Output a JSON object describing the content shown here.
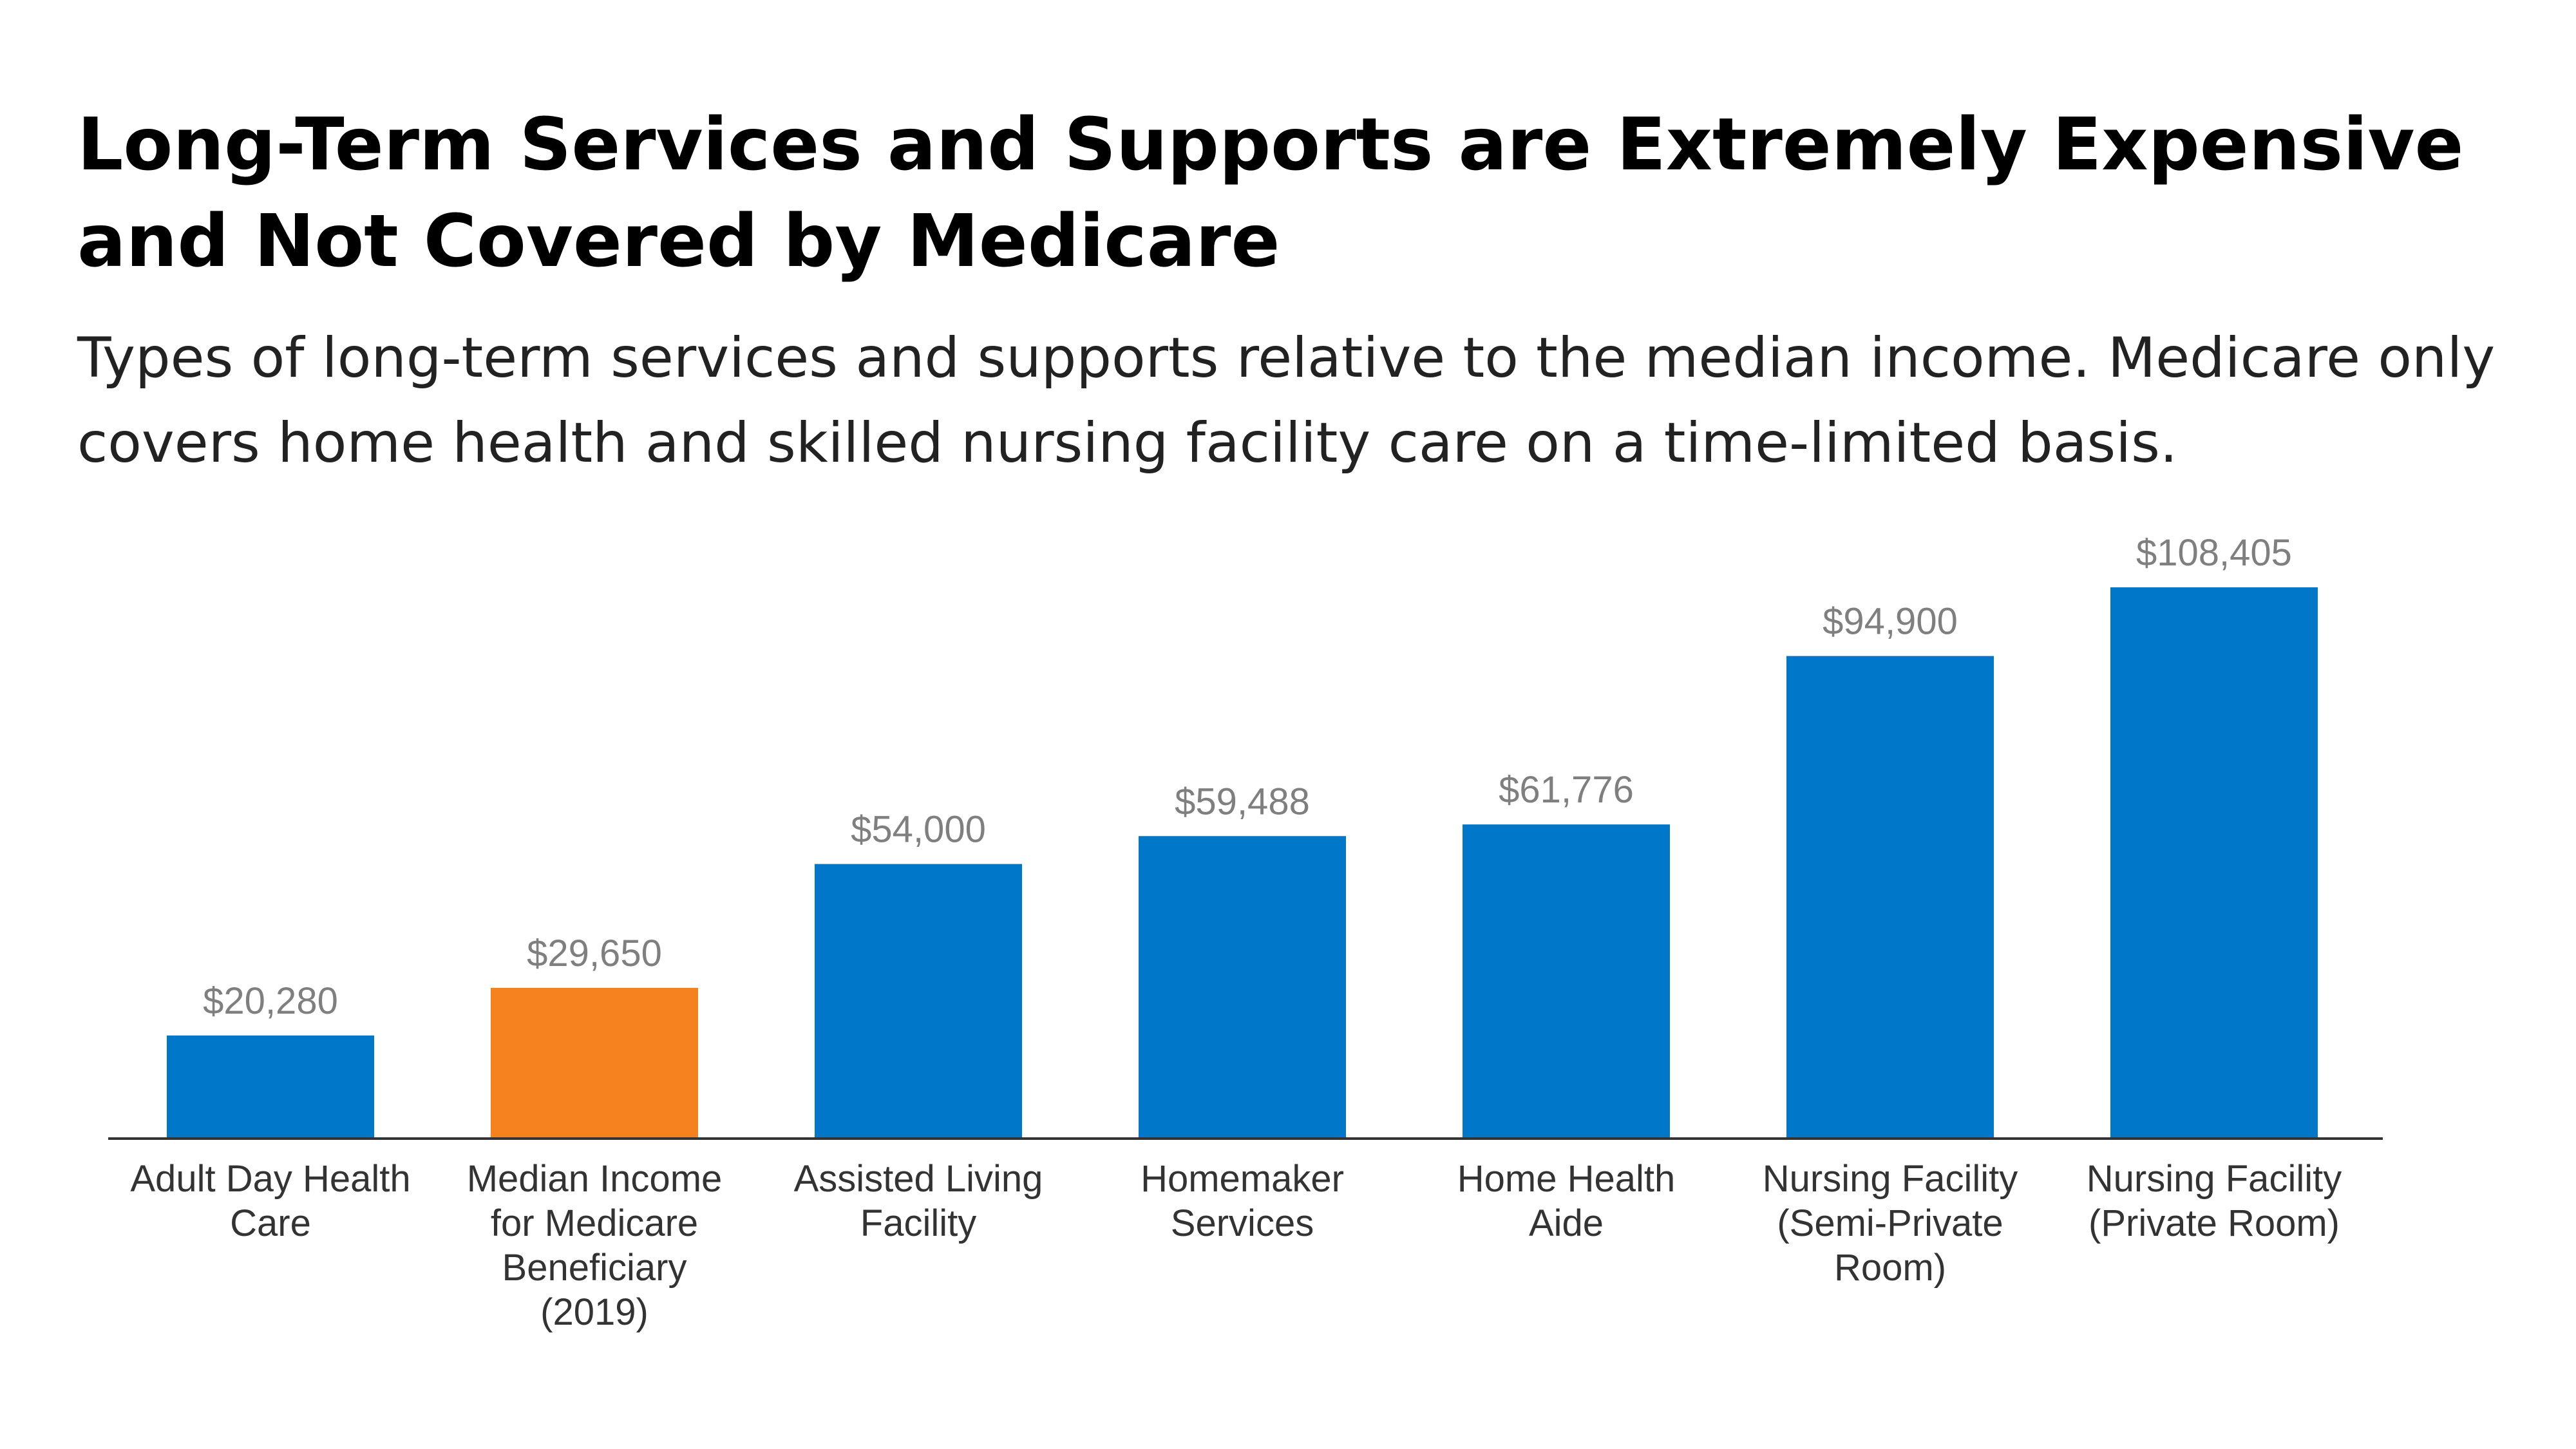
{
  "title": "Long-Term Services and Supports are Extremely Expensive and Not Covered by Medicare",
  "subtitle": "Types of long-term services and supports relative to the median income. Medicare only covers home health and skilled nursing facility care on a time-limited basis.",
  "chart_data": {
    "type": "bar",
    "title": "Long-Term Services and Supports are Extremely Expensive and Not Covered by Medicare",
    "subtitle": "Types of long-term services and supports relative to the median income. Medicare only covers home health and skilled nursing facility care on a time-limited basis.",
    "xlabel": "",
    "ylabel": "",
    "ylim": [
      0,
      108405
    ],
    "grid": false,
    "categories": [
      "Adult Day Health Care",
      "Median Income for Medicare Beneficiary (2019)",
      "Assisted Living Facility",
      "Homemaker Services",
      "Home Health Aide",
      "Nursing Facility (Semi-Private Room)",
      "Nursing Facility (Private Room)"
    ],
    "category_lines": [
      [
        "Adult Day Health",
        "Care"
      ],
      [
        "Median Income",
        "for Medicare",
        "Beneficiary",
        "(2019)"
      ],
      [
        "Assisted Living",
        "Facility"
      ],
      [
        "Homemaker",
        "Services"
      ],
      [
        "Home Health",
        "Aide"
      ],
      [
        "Nursing Facility",
        "(Semi-Private",
        "Room)"
      ],
      [
        "Nursing Facility",
        "(Private Room)"
      ]
    ],
    "values": [
      20280,
      29650,
      54000,
      59488,
      61776,
      94900,
      108405
    ],
    "value_labels": [
      "$20,280",
      "$29,650",
      "$54,000",
      "$59,488",
      "$61,776",
      "$94,900",
      "$108,405"
    ],
    "colors": [
      "#0077c8",
      "#f5821f",
      "#0077c8",
      "#0077c8",
      "#0077c8",
      "#0077c8",
      "#0077c8"
    ],
    "axis_color": "#333333",
    "value_label_color": "#7f7f7f",
    "category_label_color": "#333333"
  }
}
